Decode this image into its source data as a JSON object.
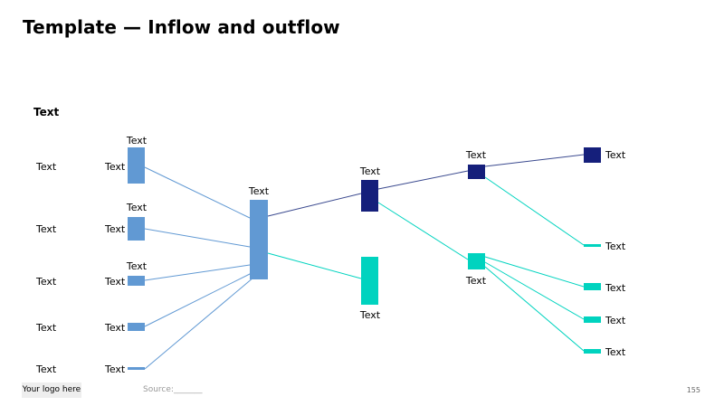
{
  "title": "Template — Inflow and outflow",
  "section_label": "Text",
  "colors": {
    "steel_blue": "#6199d3",
    "navy": "#151f7b",
    "turquoise": "#00d3bf",
    "navy_line": "#3b4a8f"
  },
  "diagram": {
    "row_labels": [
      "Text",
      "Text",
      "Text",
      "Text",
      "Text"
    ],
    "inflow_labels": [
      "Text",
      "Text",
      "Text",
      "Text",
      "Text"
    ],
    "inflow_top_labels": [
      "Text",
      "Text",
      "Text"
    ],
    "hub_label": "Text",
    "upper_branch_label": "Text",
    "lower_branch_label": "Text",
    "upper_level2_label": "Text",
    "lower_level2_label": "Text",
    "upper_end_label": "Text",
    "lower_end_labels": [
      "Text",
      "Text",
      "Text",
      "Text"
    ]
  },
  "footer": {
    "logo": "Your logo here",
    "source": "Source:_______",
    "page_number": "155"
  }
}
